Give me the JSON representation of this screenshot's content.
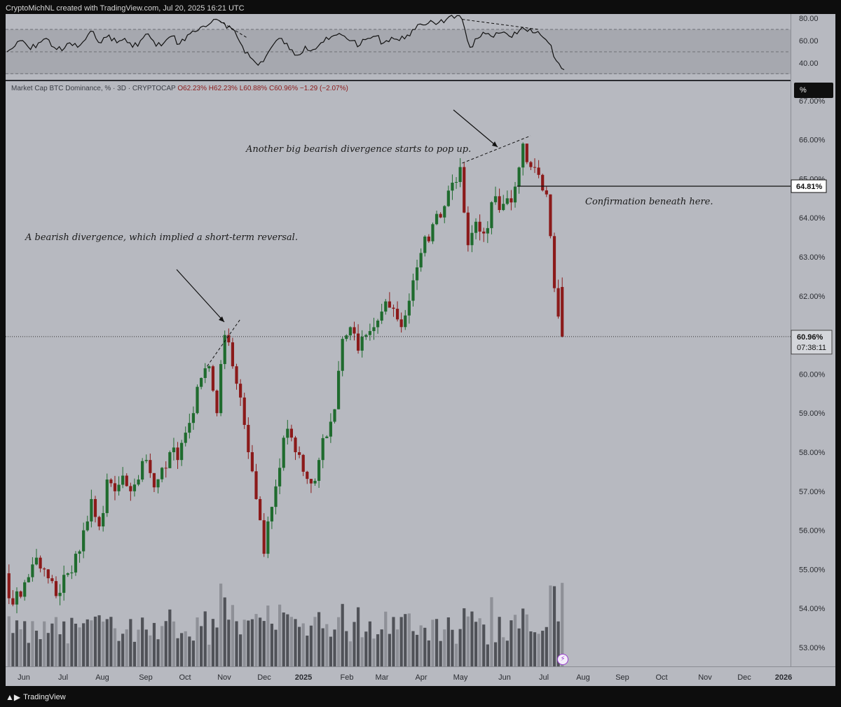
{
  "attribution": "CryptoMichNL created with TradingView.com, Jul 20, 2025 16:21 UTC",
  "legend": {
    "symbol": "Market Cap BTC Dominance, % · 3D · CRYPTOCAP",
    "open": "O62.23%",
    "high": "H62.23%",
    "low": "L60.88%",
    "close": "C60.96%",
    "change": "−1.29 (−2.07%)"
  },
  "scale_button": "%",
  "footer_brand": "TradingView",
  "colors": {
    "up": "#1f6b2e",
    "down": "#8b1a1a",
    "pane_bg": "#b7b9c0",
    "rsi_band": "#a6a8af",
    "volume_dark": "#505258",
    "volume_light": "#8e9097"
  },
  "chart_data": [
    {
      "type": "candlestick",
      "yscale": "linear",
      "ylim": [
        52.8,
        67.2
      ],
      "x_tick_labels": [
        "Jun",
        "Jul",
        "Aug",
        "Sep",
        "Oct",
        "Nov",
        "Dec",
        "2025",
        "Feb",
        "Mar",
        "Apr",
        "May",
        "Jun",
        "Jul",
        "Aug",
        "Sep",
        "Oct",
        "Nov",
        "Dec",
        "2026"
      ],
      "y_tick_labels": [
        "53.00%",
        "54.00%",
        "55.00%",
        "56.00%",
        "57.00%",
        "58.00%",
        "59.00%",
        "60.00%",
        "61.00%",
        "62.00%",
        "63.00%",
        "64.00%",
        "65.00%",
        "66.00%",
        "67.00%"
      ],
      "y_ticks": [
        53,
        54,
        55,
        56,
        57,
        58,
        59,
        60,
        61,
        62,
        63,
        64,
        65,
        66,
        67
      ],
      "series_close_path": [
        [
          "2024-05-20",
          54.6
        ],
        [
          "2024-05-26",
          54.1
        ],
        [
          "2024-06-01",
          54.3
        ],
        [
          "2024-06-07",
          54.8
        ],
        [
          "2024-06-13",
          55.3
        ],
        [
          "2024-06-19",
          55.0
        ],
        [
          "2024-06-25",
          54.7
        ],
        [
          "2024-07-01",
          54.4
        ],
        [
          "2024-07-07",
          54.9
        ],
        [
          "2024-07-13",
          55.4
        ],
        [
          "2024-07-19",
          56.0
        ],
        [
          "2024-07-25",
          56.8
        ],
        [
          "2024-07-31",
          56.1
        ],
        [
          "2024-08-06",
          57.3
        ],
        [
          "2024-08-12",
          57.0
        ],
        [
          "2024-08-18",
          57.4
        ],
        [
          "2024-08-24",
          57.0
        ],
        [
          "2024-08-30",
          57.3
        ],
        [
          "2024-09-05",
          57.8
        ],
        [
          "2024-09-11",
          57.1
        ],
        [
          "2024-09-17",
          57.6
        ],
        [
          "2024-09-23",
          58.0
        ],
        [
          "2024-09-29",
          57.8
        ],
        [
          "2024-10-05",
          58.5
        ],
        [
          "2024-10-11",
          59.0
        ],
        [
          "2024-10-17",
          59.9
        ],
        [
          "2024-10-23",
          60.2
        ],
        [
          "2024-10-29",
          59.0
        ],
        [
          "2024-11-04",
          61.0
        ],
        [
          "2024-11-10",
          60.2
        ],
        [
          "2024-11-16",
          59.4
        ],
        [
          "2024-11-22",
          58.0
        ],
        [
          "2024-11-28",
          56.8
        ],
        [
          "2024-12-04",
          55.4
        ],
        [
          "2024-12-10",
          56.6
        ],
        [
          "2024-12-16",
          57.6
        ],
        [
          "2024-12-22",
          58.6
        ],
        [
          "2024-12-28",
          58.0
        ],
        [
          "2025-01-03",
          57.5
        ],
        [
          "2025-01-09",
          57.2
        ],
        [
          "2025-01-15",
          57.8
        ],
        [
          "2025-01-21",
          58.4
        ],
        [
          "2025-01-27",
          59.1
        ],
        [
          "2025-02-02",
          60.9
        ],
        [
          "2025-02-08",
          61.2
        ],
        [
          "2025-02-14",
          60.6
        ],
        [
          "2025-02-20",
          61.0
        ],
        [
          "2025-02-26",
          61.2
        ],
        [
          "2025-03-04",
          61.6
        ],
        [
          "2025-03-10",
          61.7
        ],
        [
          "2025-03-16",
          61.4
        ],
        [
          "2025-03-22",
          61.5
        ],
        [
          "2025-03-28",
          62.4
        ],
        [
          "2025-04-03",
          63.1
        ],
        [
          "2025-04-09",
          63.4
        ],
        [
          "2025-04-15",
          64.1
        ],
        [
          "2025-04-21",
          64.3
        ],
        [
          "2025-04-27",
          64.9
        ],
        [
          "2025-05-03",
          65.3
        ],
        [
          "2025-05-09",
          63.3
        ],
        [
          "2025-05-15",
          63.9
        ],
        [
          "2025-05-21",
          63.6
        ],
        [
          "2025-05-27",
          64.4
        ],
        [
          "2025-06-02",
          64.2
        ],
        [
          "2025-06-08",
          64.5
        ],
        [
          "2025-06-14",
          64.8
        ],
        [
          "2025-06-20",
          65.9
        ],
        [
          "2025-06-26",
          65.3
        ],
        [
          "2025-07-02",
          65.1
        ],
        [
          "2025-07-08",
          64.6
        ],
        [
          "2025-07-14",
          62.2
        ],
        [
          "2025-07-20",
          60.96
        ]
      ],
      "last_price_label": "60.96%",
      "countdown": "07:38:11",
      "horizontal_level": 64.81,
      "horizontal_level_label": "64.81%",
      "annotations": [
        "A bearish divergence, which implied a short-term reversal.",
        "Another big bearish divergence starts to pop up.",
        "Confirmation beneath here."
      ],
      "divergence_lines": [
        {
          "from": [
            "2024-10-20",
            60.2
          ],
          "to": [
            "2024-11-10",
            61.4
          ]
        },
        {
          "from": [
            "2025-05-03",
            65.4
          ],
          "to": [
            "2025-06-20",
            66.1
          ]
        }
      ]
    },
    {
      "type": "line",
      "name": "RSI",
      "ylim": [
        33,
        81
      ],
      "y_tick_labels": [
        "80.00",
        "60.00",
        "40.00"
      ],
      "y_ticks": [
        80,
        60,
        40
      ],
      "band": [
        30,
        70
      ],
      "divergence_lines": [
        {
          "from": [
            "2024-10-29",
            78
          ],
          "to": [
            "2024-11-16",
            62
          ]
        },
        {
          "from": [
            "2025-05-03",
            79
          ],
          "to": [
            "2025-06-26",
            70
          ]
        }
      ],
      "points": [
        [
          "2024-05-20",
          50
        ],
        [
          "2024-05-26",
          55
        ],
        [
          "2024-06-01",
          60
        ],
        [
          "2024-06-07",
          52
        ],
        [
          "2024-06-13",
          58
        ],
        [
          "2024-06-19",
          62
        ],
        [
          "2024-06-25",
          54
        ],
        [
          "2024-07-01",
          51
        ],
        [
          "2024-07-07",
          58
        ],
        [
          "2024-07-13",
          54
        ],
        [
          "2024-07-19",
          61
        ],
        [
          "2024-07-25",
          68
        ],
        [
          "2024-07-31",
          58
        ],
        [
          "2024-08-06",
          65
        ],
        [
          "2024-08-12",
          58
        ],
        [
          "2024-08-18",
          62
        ],
        [
          "2024-08-24",
          54
        ],
        [
          "2024-08-30",
          60
        ],
        [
          "2024-09-05",
          66
        ],
        [
          "2024-09-11",
          55
        ],
        [
          "2024-09-17",
          58
        ],
        [
          "2024-09-23",
          64
        ],
        [
          "2024-09-29",
          57
        ],
        [
          "2024-10-05",
          65
        ],
        [
          "2024-10-11",
          68
        ],
        [
          "2024-10-17",
          73
        ],
        [
          "2024-10-23",
          76
        ],
        [
          "2024-10-29",
          78
        ],
        [
          "2024-11-04",
          71
        ],
        [
          "2024-11-10",
          69
        ],
        [
          "2024-11-16",
          55
        ],
        [
          "2024-11-22",
          45
        ],
        [
          "2024-11-28",
          38
        ],
        [
          "2024-12-04",
          46
        ],
        [
          "2024-12-10",
          57
        ],
        [
          "2024-12-16",
          62
        ],
        [
          "2024-12-22",
          52
        ],
        [
          "2024-12-28",
          47
        ],
        [
          "2025-01-03",
          55
        ],
        [
          "2025-01-09",
          52
        ],
        [
          "2025-01-15",
          58
        ],
        [
          "2025-01-21",
          61
        ],
        [
          "2025-01-27",
          65
        ],
        [
          "2025-02-02",
          64
        ],
        [
          "2025-02-08",
          60
        ],
        [
          "2025-02-14",
          56
        ],
        [
          "2025-02-20",
          62
        ],
        [
          "2025-02-26",
          64
        ],
        [
          "2025-03-04",
          58
        ],
        [
          "2025-03-10",
          63
        ],
        [
          "2025-03-16",
          60
        ],
        [
          "2025-03-22",
          65
        ],
        [
          "2025-03-28",
          70
        ],
        [
          "2025-04-03",
          74
        ],
        [
          "2025-04-09",
          78
        ],
        [
          "2025-04-15",
          76
        ],
        [
          "2025-04-21",
          79
        ],
        [
          "2025-04-27",
          80
        ],
        [
          "2025-05-03",
          79
        ],
        [
          "2025-05-09",
          54
        ],
        [
          "2025-05-15",
          62
        ],
        [
          "2025-05-21",
          66
        ],
        [
          "2025-05-27",
          63
        ],
        [
          "2025-06-02",
          67
        ],
        [
          "2025-06-08",
          64
        ],
        [
          "2025-06-14",
          66
        ],
        [
          "2025-06-20",
          70
        ],
        [
          "2025-06-26",
          67
        ],
        [
          "2025-07-02",
          65
        ],
        [
          "2025-07-08",
          58
        ],
        [
          "2025-07-14",
          42
        ],
        [
          "2025-07-20",
          34
        ]
      ]
    }
  ]
}
